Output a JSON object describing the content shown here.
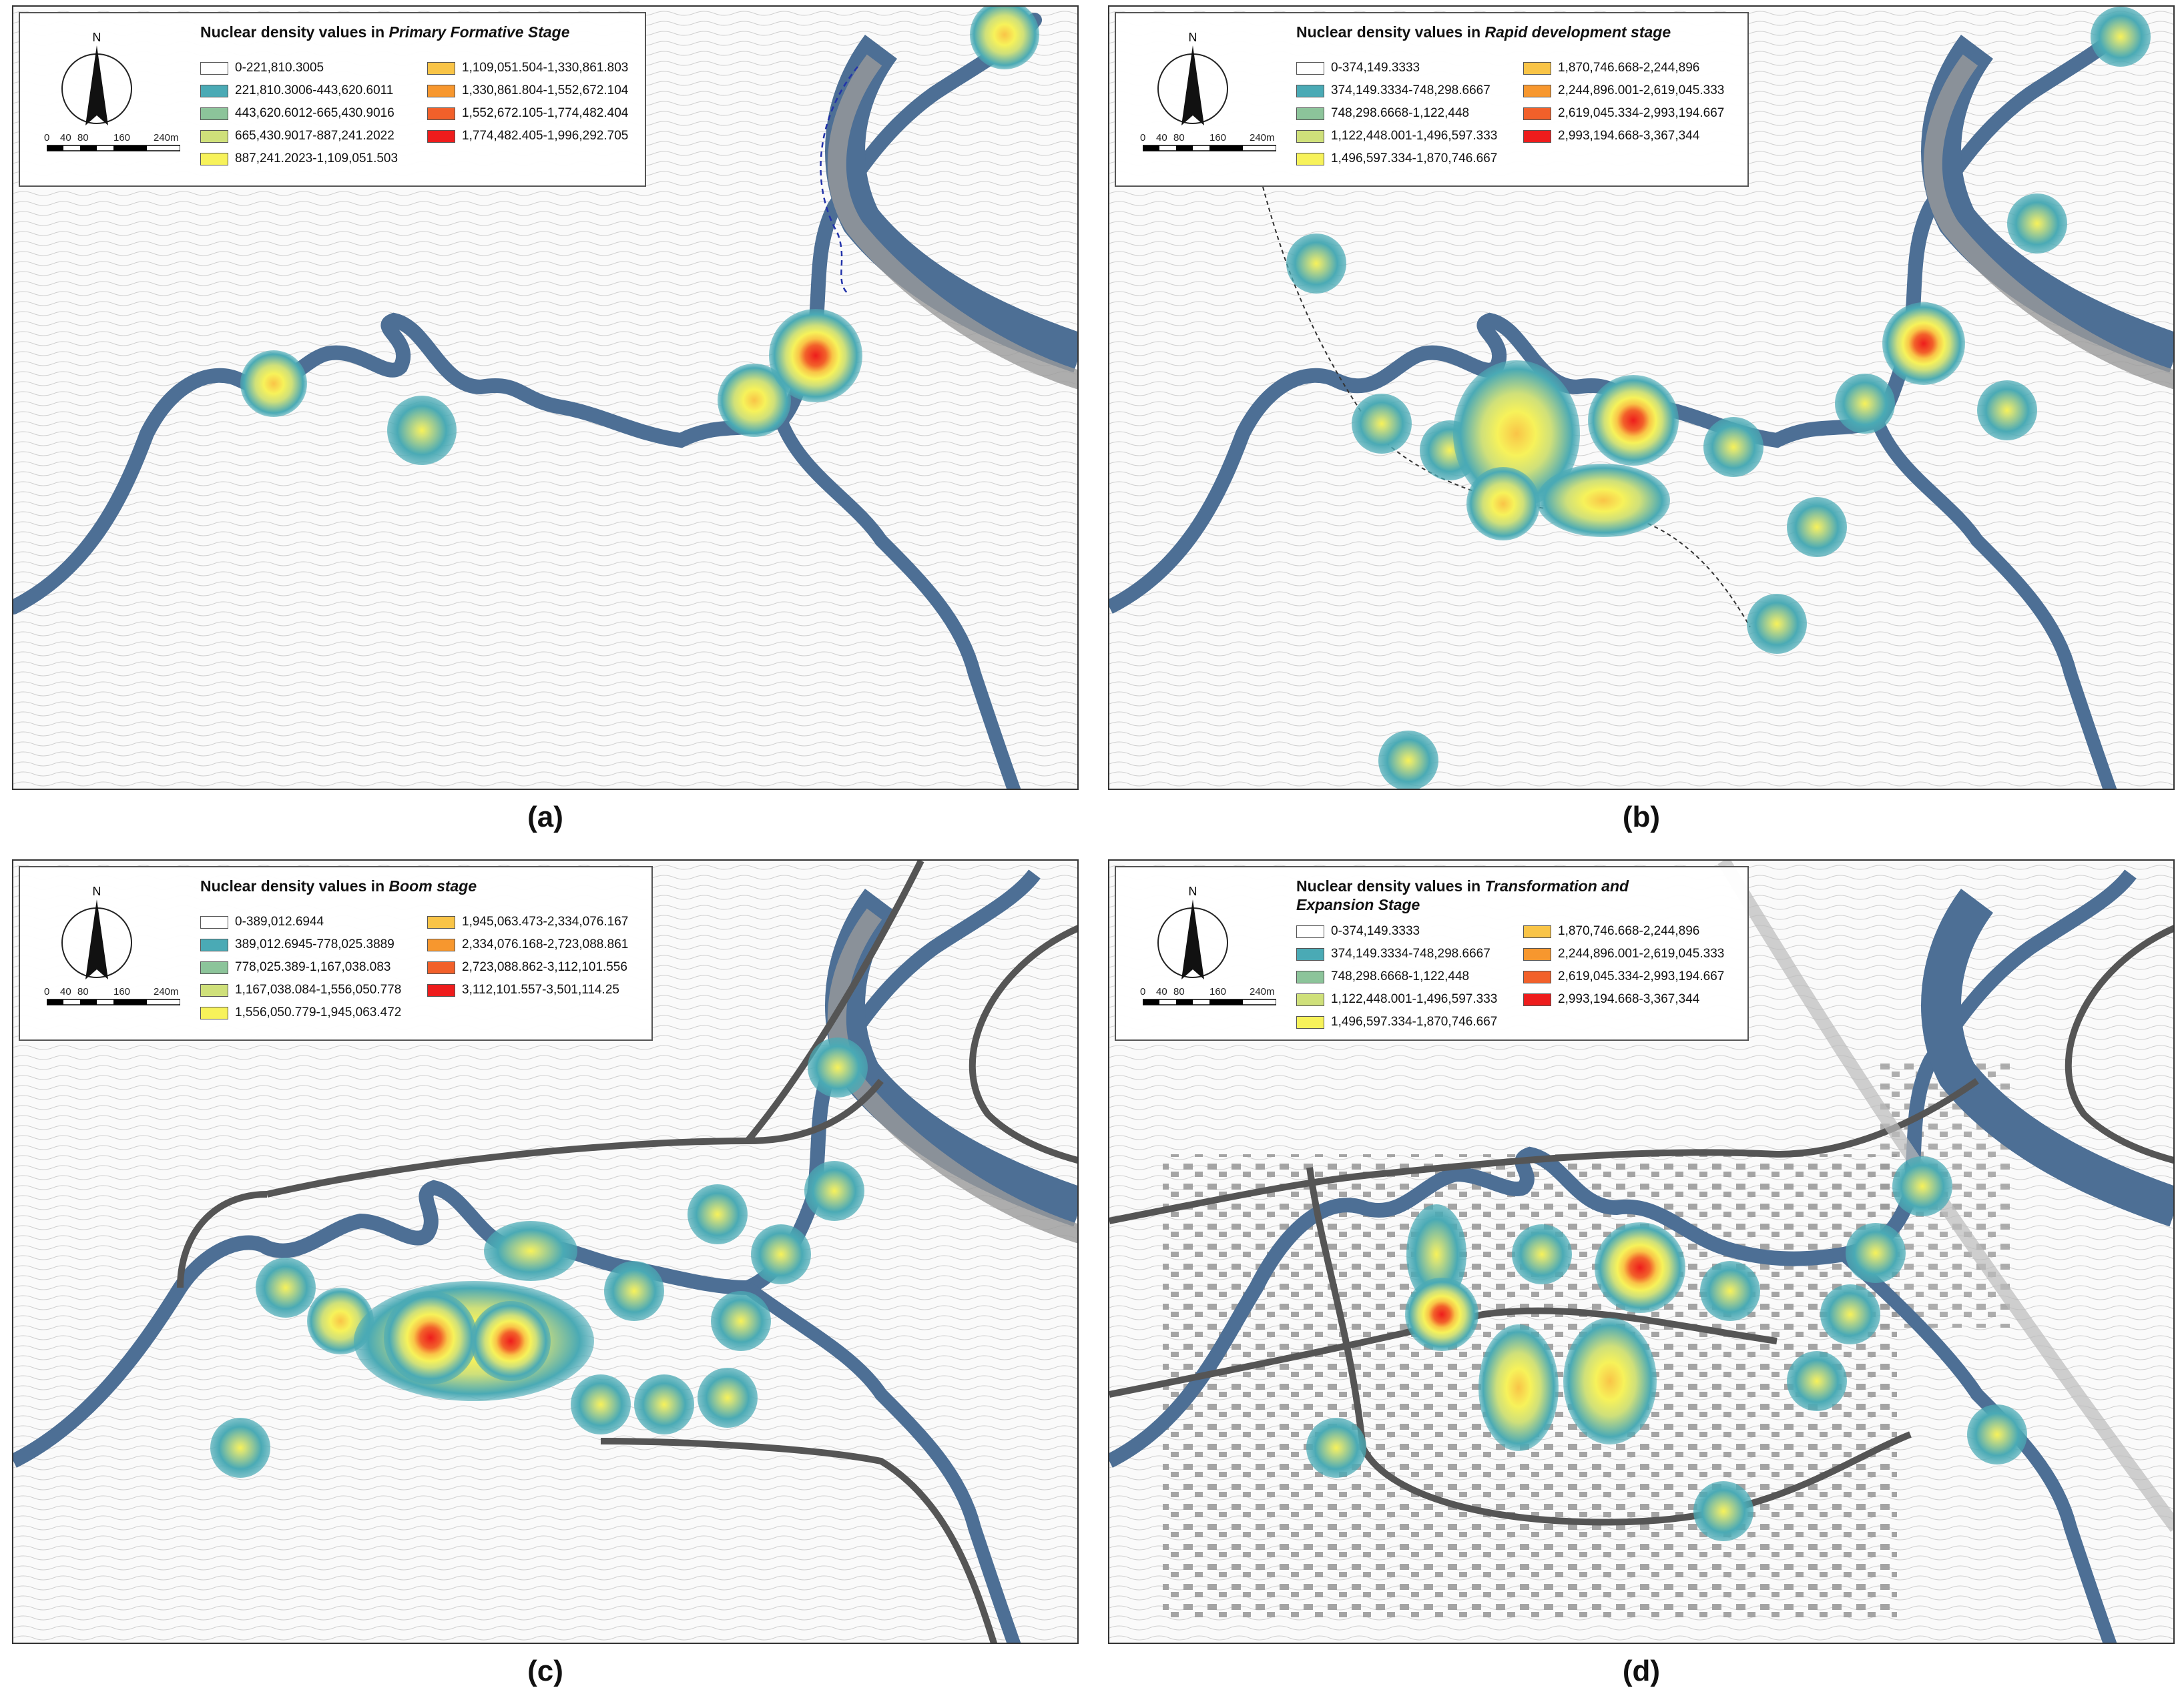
{
  "panels": [
    {
      "id": "a",
      "caption": "(a)",
      "legend": {
        "title_prefix": "Nuclear density values in ",
        "title_em": "Primary Formative Stage",
        "title_em2": "",
        "classes": [
          {
            "label": "0-221,810.3005",
            "color": "#ffffff"
          },
          {
            "label": "221,810.3006-443,620.6011",
            "color": "#4aaab5"
          },
          {
            "label": "443,620.6012-665,430.9016",
            "color": "#8cc49a"
          },
          {
            "label": "665,430.9017-887,241.2022",
            "color": "#cfe07a"
          },
          {
            "label": "887,241.2023-1,109,051.503",
            "color": "#f7f25a"
          },
          {
            "label": "1,109,051.504-1,330,861.803",
            "color": "#f9c447"
          },
          {
            "label": "1,330,861.804-1,552,672.104",
            "color": "#f7972e"
          },
          {
            "label": "1,552,672.105-1,774,482.404",
            "color": "#f2602a"
          },
          {
            "label": "1,774,482.405-1,996,292.705",
            "color": "#ee1c1c"
          }
        ]
      }
    },
    {
      "id": "b",
      "caption": "(b)",
      "legend": {
        "title_prefix": "Nuclear density values in ",
        "title_em": "Rapid development stage",
        "title_em2": "",
        "classes": [
          {
            "label": "0-374,149.3333",
            "color": "#ffffff"
          },
          {
            "label": "374,149.3334-748,298.6667",
            "color": "#4aaab5"
          },
          {
            "label": "748,298.6668-1,122,448",
            "color": "#8cc49a"
          },
          {
            "label": "1,122,448.001-1,496,597.333",
            "color": "#cfe07a"
          },
          {
            "label": "1,496,597.334-1,870,746.667",
            "color": "#f7f25a"
          },
          {
            "label": "1,870,746.668-2,244,896",
            "color": "#f9c447"
          },
          {
            "label": "2,244,896.001-2,619,045.333",
            "color": "#f7972e"
          },
          {
            "label": "2,619,045.334-2,993,194.667",
            "color": "#f2602a"
          },
          {
            "label": "2,993,194.668-3,367,344",
            "color": "#ee1c1c"
          }
        ]
      }
    },
    {
      "id": "c",
      "caption": "(c)",
      "legend": {
        "title_prefix": "Nuclear density values in ",
        "title_em": "Boom stage",
        "title_em2": "",
        "classes": [
          {
            "label": "0-389,012.6944",
            "color": "#ffffff"
          },
          {
            "label": "389,012.6945-778,025.3889",
            "color": "#4aaab5"
          },
          {
            "label": "778,025.389-1,167,038.083",
            "color": "#8cc49a"
          },
          {
            "label": "1,167,038.084-1,556,050.778",
            "color": "#cfe07a"
          },
          {
            "label": "1,556,050.779-1,945,063.472",
            "color": "#f7f25a"
          },
          {
            "label": "1,945,063.473-2,334,076.167",
            "color": "#f9c447"
          },
          {
            "label": "2,334,076.168-2,723,088.861",
            "color": "#f7972e"
          },
          {
            "label": "2,723,088.862-3,112,101.556",
            "color": "#f2602a"
          },
          {
            "label": "3,112,101.557-3,501,114.25",
            "color": "#ee1c1c"
          }
        ]
      }
    },
    {
      "id": "d",
      "caption": "(d)",
      "legend": {
        "title_prefix": "Nuclear density values in ",
        "title_em": "Transformation and",
        "title_em2": "Expansion Stage",
        "classes": [
          {
            "label": "0-374,149.3333",
            "color": "#ffffff"
          },
          {
            "label": "374,149.3334-748,298.6667",
            "color": "#4aaab5"
          },
          {
            "label": "748,298.6668-1,122,448",
            "color": "#8cc49a"
          },
          {
            "label": "1,122,448.001-1,496,597.333",
            "color": "#cfe07a"
          },
          {
            "label": "1,496,597.334-1,870,746.667",
            "color": "#f7f25a"
          },
          {
            "label": "1,870,746.668-2,244,896",
            "color": "#f9c447"
          },
          {
            "label": "2,244,896.001-2,619,045.333",
            "color": "#f7972e"
          },
          {
            "label": "2,619,045.334-2,993,194.667",
            "color": "#f2602a"
          },
          {
            "label": "2,993,194.668-3,367,344",
            "color": "#ee1c1c"
          }
        ]
      }
    }
  ],
  "compass_label": "N",
  "scale": {
    "ticks": [
      "0",
      "40",
      "80",
      "160",
      "240m"
    ]
  },
  "colors": {
    "river": "#4d6f95",
    "road": "#555555",
    "hotspot_outer": "#4aaab5",
    "hotspot_peak": "#ee1c1c"
  }
}
